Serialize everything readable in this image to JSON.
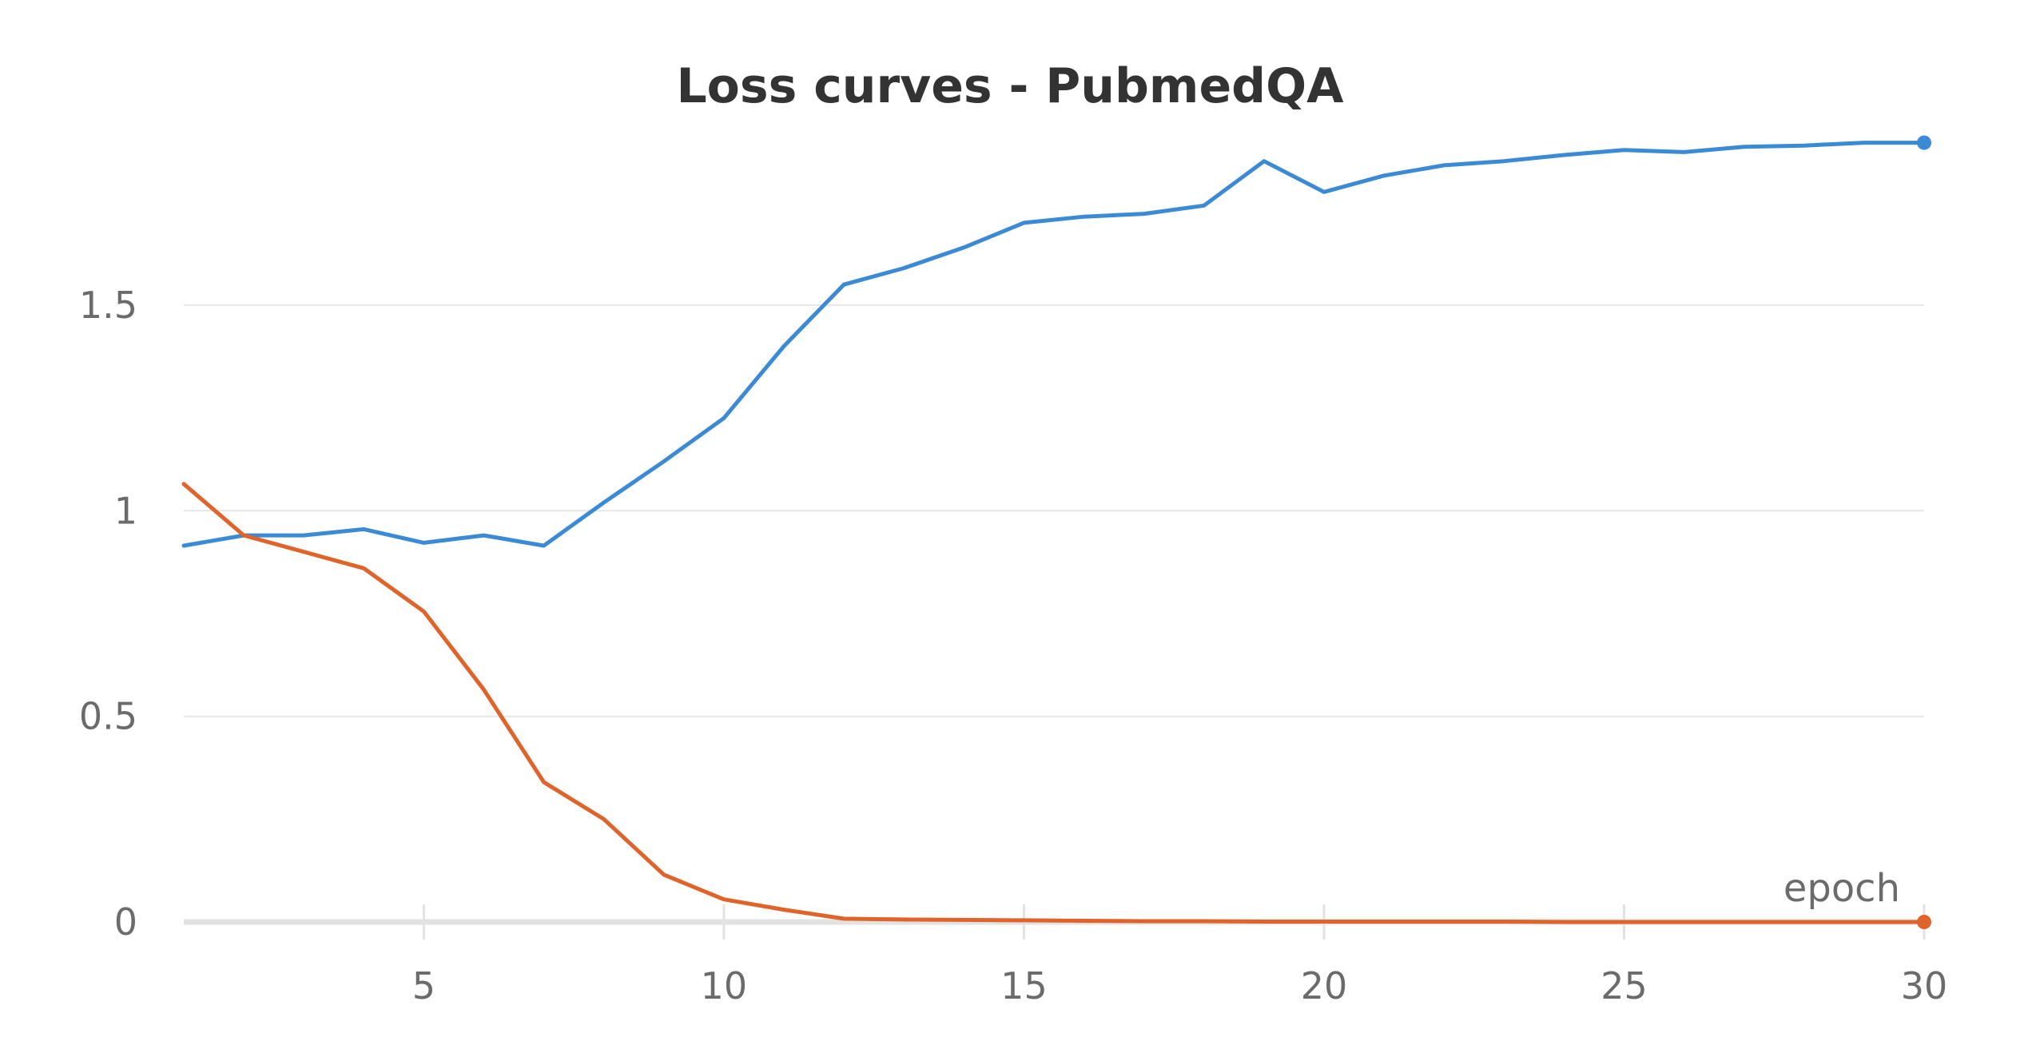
{
  "chart_data": {
    "type": "line",
    "title": "Loss curves - PubmedQA",
    "xlabel": "epoch",
    "ylabel": "",
    "xlim": [
      1,
      30
    ],
    "ylim": [
      0,
      1.9
    ],
    "x_ticks": [
      5,
      10,
      15,
      20,
      25,
      30
    ],
    "y_ticks": [
      0,
      0.5,
      1,
      1.5
    ],
    "y_tick_labels": [
      "0",
      "0.5",
      "1",
      "1.5"
    ],
    "grid": true,
    "x": [
      1,
      2,
      3,
      4,
      5,
      6,
      7,
      8,
      9,
      10,
      11,
      12,
      13,
      14,
      15,
      16,
      17,
      18,
      19,
      20,
      21,
      22,
      23,
      24,
      25,
      26,
      27,
      28,
      29,
      30
    ],
    "series": [
      {
        "color": "#3a8ad6",
        "values": [
          0.915,
          0.94,
          0.94,
          0.955,
          0.922,
          0.94,
          0.915,
          1.02,
          1.12,
          1.225,
          1.4,
          1.55,
          1.59,
          1.64,
          1.7,
          1.715,
          1.722,
          1.742,
          1.85,
          1.775,
          1.815,
          1.84,
          1.85,
          1.865,
          1.877,
          1.872,
          1.885,
          1.888,
          1.895,
          1.895
        ]
      },
      {
        "color": "#e0632a",
        "values": [
          1.065,
          0.94,
          0.9,
          0.86,
          0.755,
          0.565,
          0.34,
          0.25,
          0.115,
          0.055,
          0.03,
          0.008,
          0.006,
          0.005,
          0.004,
          0.003,
          0.002,
          0.002,
          0.001,
          0.001,
          0.001,
          0.001,
          0.001,
          0.0,
          0.0,
          0.0,
          0.0,
          0.0,
          0.0,
          0.0
        ]
      }
    ]
  }
}
